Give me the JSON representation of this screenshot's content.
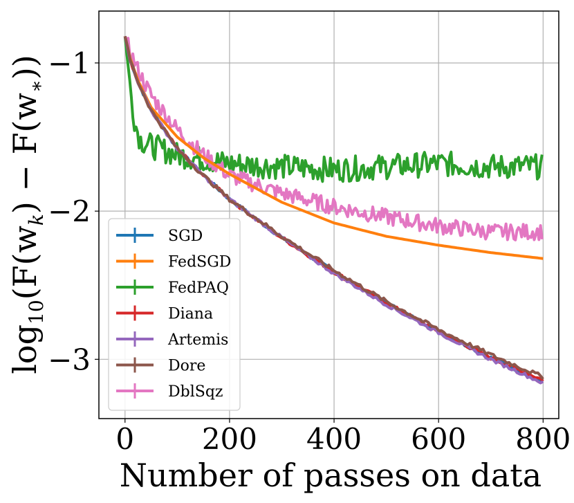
{
  "chart_data": {
    "type": "line",
    "title": "",
    "xlabel": "Number of passes on data",
    "ylabel_parts": {
      "prefix": "log",
      "subscript": "10",
      "body": "(F(w",
      "k": "k",
      "middle": ") − F(w",
      "star": "∗",
      "suffix": "))"
    },
    "xlim": [
      -50,
      830
    ],
    "ylim": [
      -3.4,
      -0.65
    ],
    "x_ticks": [
      0,
      200,
      400,
      600,
      800
    ],
    "x_tick_labels": [
      "0",
      "200",
      "400",
      "600",
      "800"
    ],
    "y_ticks": [
      -1,
      -2,
      -3
    ],
    "y_tick_labels": [
      "−1",
      "−2",
      "−3"
    ],
    "grid": true,
    "legend_position": "lower-left",
    "series": [
      {
        "name": "SGD",
        "color": "#1f77b4",
        "x": [
          0,
          10,
          25,
          50,
          100,
          150,
          200,
          300,
          400,
          500,
          600,
          700,
          800
        ],
        "values": [
          -0.82,
          -0.98,
          -1.13,
          -1.32,
          -1.58,
          -1.76,
          -1.92,
          -2.18,
          -2.41,
          -2.62,
          -2.81,
          -2.99,
          -3.15
        ]
      },
      {
        "name": "FedSGD",
        "color": "#ff7f0e",
        "x": [
          0,
          10,
          25,
          50,
          100,
          150,
          200,
          300,
          400,
          500,
          600,
          700,
          800
        ],
        "values": [
          -0.82,
          -0.97,
          -1.12,
          -1.3,
          -1.5,
          -1.64,
          -1.75,
          -1.94,
          -2.08,
          -2.17,
          -2.23,
          -2.28,
          -2.32
        ]
      },
      {
        "name": "FedPAQ",
        "color": "#2ca02c",
        "x": [
          0,
          10,
          20,
          30,
          50,
          100,
          200,
          300,
          400,
          500,
          600,
          700,
          800
        ],
        "values": [
          -0.82,
          -1.18,
          -1.42,
          -1.52,
          -1.56,
          -1.62,
          -1.68,
          -1.7,
          -1.72,
          -1.7,
          -1.68,
          -1.7,
          -1.7
        ]
      },
      {
        "name": "Diana",
        "color": "#d62728",
        "x": [
          0,
          10,
          25,
          50,
          100,
          150,
          200,
          300,
          400,
          500,
          600,
          700,
          800
        ],
        "values": [
          -0.82,
          -0.98,
          -1.13,
          -1.32,
          -1.58,
          -1.76,
          -1.92,
          -2.18,
          -2.41,
          -2.62,
          -2.81,
          -2.99,
          -3.14
        ]
      },
      {
        "name": "Artemis",
        "color": "#9467bd",
        "x": [
          0,
          10,
          25,
          50,
          100,
          150,
          200,
          300,
          400,
          500,
          600,
          700,
          800
        ],
        "values": [
          -0.82,
          -0.98,
          -1.13,
          -1.32,
          -1.58,
          -1.76,
          -1.92,
          -2.18,
          -2.42,
          -2.63,
          -2.82,
          -3.0,
          -3.16
        ]
      },
      {
        "name": "Dore",
        "color": "#8c564b",
        "x": [
          0,
          10,
          25,
          50,
          100,
          150,
          200,
          300,
          400,
          500,
          600,
          700,
          800
        ],
        "values": [
          -0.82,
          -0.98,
          -1.13,
          -1.32,
          -1.58,
          -1.76,
          -1.92,
          -2.17,
          -2.4,
          -2.61,
          -2.8,
          -2.97,
          -3.12
        ]
      },
      {
        "name": "DblSqz",
        "color": "#e377c2",
        "x": [
          0,
          10,
          25,
          50,
          100,
          150,
          200,
          300,
          400,
          500,
          600,
          700,
          800
        ],
        "values": [
          -0.82,
          -0.93,
          -1.05,
          -1.22,
          -1.45,
          -1.62,
          -1.76,
          -1.88,
          -1.97,
          -2.04,
          -2.1,
          -2.14,
          -2.14
        ]
      }
    ]
  }
}
